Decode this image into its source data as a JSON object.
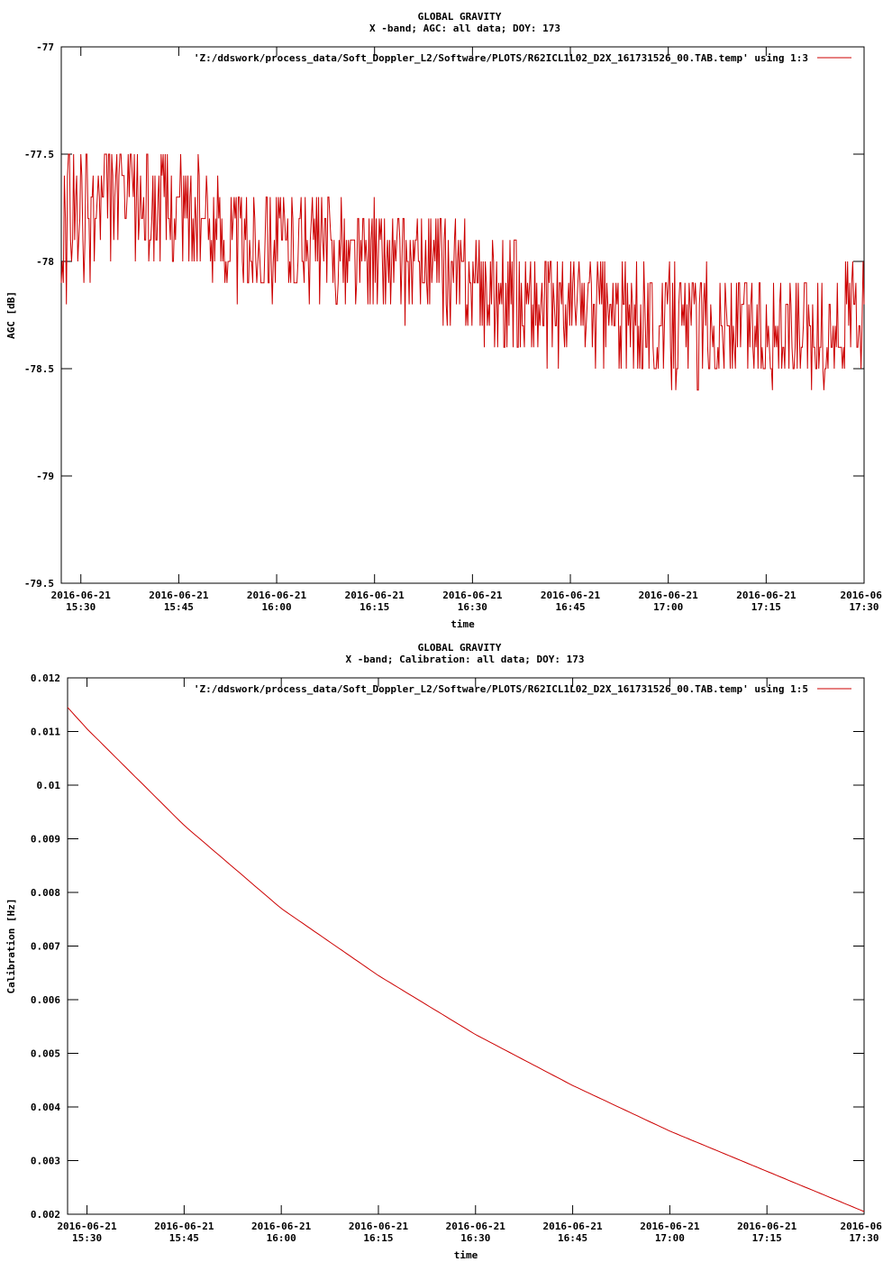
{
  "chart_data": [
    {
      "type": "line",
      "title": "GLOBAL GRAVITY",
      "subtitle": "X -band; AGC: all data; DOY: 173",
      "xlabel": "time",
      "ylabel": "AGC [dB]",
      "ylim": [
        -79.5,
        -77
      ],
      "yticks": [
        "-77",
        "-77.5",
        "-78",
        "-78.5",
        "-79",
        "-79.5"
      ],
      "xlim_minutes": [
        27,
        150
      ],
      "xticks": [
        {
          "date": "2016-06-21",
          "time": "15:30"
        },
        {
          "date": "2016-06-21",
          "time": "15:45"
        },
        {
          "date": "2016-06-21",
          "time": "16:00"
        },
        {
          "date": "2016-06-21",
          "time": "16:15"
        },
        {
          "date": "2016-06-21",
          "time": "16:30"
        },
        {
          "date": "2016-06-21",
          "time": "16:45"
        },
        {
          "date": "2016-06-21",
          "time": "17:00"
        },
        {
          "date": "2016-06-21",
          "time": "17:15"
        },
        {
          "date": "2016-06-",
          "time": "17:30"
        }
      ],
      "legend": "'Z:/ddswork/process_data/Soft_Doppler_L2/Software/PLOTS/R62ICL1L02_D2X_161731526_00.TAB.temp' using 1:3",
      "legend_position": "top-right",
      "grid": false,
      "series": [
        {
          "color": "#cc0000",
          "x": [
            "15:27",
            "15:36",
            "15:45",
            "15:54",
            "16:03",
            "16:12",
            "16:21",
            "16:30",
            "16:39",
            "16:48",
            "16:57",
            "17:06",
            "17:15",
            "17:24",
            "17:30"
          ],
          "values": [
            -77.85,
            -77.7,
            -77.75,
            -77.9,
            -77.9,
            -78.0,
            -78.0,
            -78.1,
            -78.2,
            -78.2,
            -78.3,
            -78.3,
            -78.3,
            -78.35,
            -78.2
          ]
        }
      ]
    },
    {
      "type": "line",
      "title": "GLOBAL GRAVITY",
      "subtitle": "X -band; Calibration: all data; DOY: 173",
      "xlabel": "time",
      "ylabel": "Calibration [Hz]",
      "ylim": [
        0.002,
        0.012
      ],
      "yticks": [
        "0.012",
        "0.011",
        "0.01",
        "0.009",
        "0.008",
        "0.007",
        "0.006",
        "0.005",
        "0.004",
        "0.003",
        "0.002"
      ],
      "xlim_minutes": [
        27,
        150
      ],
      "xticks": [
        {
          "date": "2016-06-21",
          "time": "15:30"
        },
        {
          "date": "2016-06-21",
          "time": "15:45"
        },
        {
          "date": "2016-06-21",
          "time": "16:00"
        },
        {
          "date": "2016-06-21",
          "time": "16:15"
        },
        {
          "date": "2016-06-21",
          "time": "16:30"
        },
        {
          "date": "2016-06-21",
          "time": "16:45"
        },
        {
          "date": "2016-06-21",
          "time": "17:00"
        },
        {
          "date": "2016-06-21",
          "time": "17:15"
        },
        {
          "date": "2016-06-",
          "time": "17:30"
        }
      ],
      "legend": "'Z:/ddswork/process_data/Soft_Doppler_L2/Software/PLOTS/R62ICL1L02_D2X_161731526_00.TAB.temp' using 1:5",
      "legend_position": "top-right",
      "grid": false,
      "series": [
        {
          "color": "#cc0000",
          "x": [
            "15:27",
            "15:30",
            "15:45",
            "16:00",
            "16:15",
            "16:30",
            "16:45",
            "17:00",
            "17:15",
            "17:30"
          ],
          "values": [
            0.01145,
            0.01105,
            0.00925,
            0.0077,
            0.00645,
            0.00535,
            0.0044,
            0.00355,
            0.0028,
            0.00205
          ]
        }
      ]
    }
  ]
}
